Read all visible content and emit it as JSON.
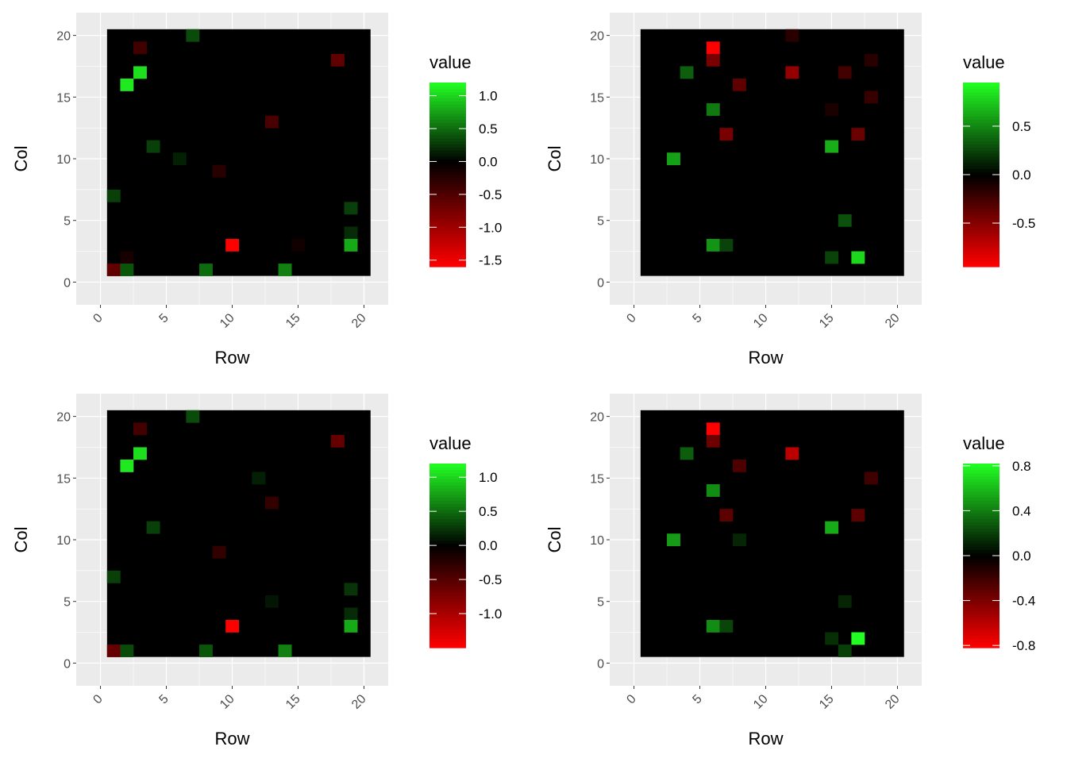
{
  "colors": {
    "low": "#ff0000",
    "mid": "#000000",
    "high": "#22ff22"
  },
  "chart_data": [
    {
      "type": "heatmap",
      "xlabel": "Row",
      "ylabel": "Col",
      "xlim": [
        0,
        20
      ],
      "ylim": [
        0,
        20
      ],
      "x_ticks": [
        "0",
        "5",
        "10",
        "15",
        "20"
      ],
      "y_ticks": [
        "0",
        "5",
        "10",
        "15",
        "20"
      ],
      "legend_title": "value",
      "legend_position": "right",
      "scale_min": -1.6,
      "scale_max": 1.2,
      "legend_ticks": [
        {
          "value": 1.0,
          "label": "1.0"
        },
        {
          "value": 0.5,
          "label": "0.5"
        },
        {
          "value": 0.0,
          "label": "0.0"
        },
        {
          "value": -0.5,
          "label": "-0.5"
        },
        {
          "value": -1.0,
          "label": "-1.0"
        },
        {
          "value": -1.5,
          "label": "-1.5"
        }
      ],
      "cells": [
        {
          "x": 7,
          "y": 20,
          "value": 0.35
        },
        {
          "x": 3,
          "y": 19,
          "value": -0.4
        },
        {
          "x": 18,
          "y": 18,
          "value": -0.6
        },
        {
          "x": 3,
          "y": 17,
          "value": 1.05
        },
        {
          "x": 2,
          "y": 16,
          "value": 1.1
        },
        {
          "x": 13,
          "y": 13,
          "value": -0.45
        },
        {
          "x": 4,
          "y": 11,
          "value": 0.3
        },
        {
          "x": 6,
          "y": 10,
          "value": 0.15
        },
        {
          "x": 9,
          "y": 9,
          "value": -0.25
        },
        {
          "x": 1,
          "y": 7,
          "value": 0.3
        },
        {
          "x": 19,
          "y": 6,
          "value": 0.3
        },
        {
          "x": 19,
          "y": 4,
          "value": 0.2
        },
        {
          "x": 10,
          "y": 3,
          "value": -1.6
        },
        {
          "x": 19,
          "y": 3,
          "value": 0.8
        },
        {
          "x": 15,
          "y": 3,
          "value": -0.1
        },
        {
          "x": 2,
          "y": 2,
          "value": -0.15
        },
        {
          "x": 1,
          "y": 1,
          "value": -0.6
        },
        {
          "x": 2,
          "y": 1,
          "value": 0.4
        },
        {
          "x": 8,
          "y": 1,
          "value": 0.5
        },
        {
          "x": 14,
          "y": 1,
          "value": 0.6
        }
      ]
    },
    {
      "type": "heatmap",
      "xlabel": "Row",
      "ylabel": "Col",
      "xlim": [
        0,
        20
      ],
      "ylim": [
        0,
        20
      ],
      "x_ticks": [
        "0",
        "5",
        "10",
        "15",
        "20"
      ],
      "y_ticks": [
        "0",
        "5",
        "10",
        "15",
        "20"
      ],
      "legend_title": "value",
      "legend_position": "right",
      "scale_min": -0.95,
      "scale_max": 0.95,
      "legend_ticks": [
        {
          "value": 0.5,
          "label": "0.5"
        },
        {
          "value": 0.0,
          "label": "0.0"
        },
        {
          "value": -0.5,
          "label": "-0.5"
        }
      ],
      "cells": [
        {
          "x": 12,
          "y": 20,
          "value": -0.15
        },
        {
          "x": 6,
          "y": 19,
          "value": -0.95
        },
        {
          "x": 6,
          "y": 18,
          "value": -0.45
        },
        {
          "x": 18,
          "y": 18,
          "value": -0.15
        },
        {
          "x": 4,
          "y": 17,
          "value": 0.35
        },
        {
          "x": 12,
          "y": 17,
          "value": -0.55
        },
        {
          "x": 16,
          "y": 17,
          "value": -0.25
        },
        {
          "x": 8,
          "y": 16,
          "value": -0.35
        },
        {
          "x": 18,
          "y": 15,
          "value": -0.2
        },
        {
          "x": 6,
          "y": 14,
          "value": 0.45
        },
        {
          "x": 15,
          "y": 14,
          "value": -0.1
        },
        {
          "x": 7,
          "y": 12,
          "value": -0.45
        },
        {
          "x": 17,
          "y": 12,
          "value": -0.4
        },
        {
          "x": 15,
          "y": 11,
          "value": 0.65
        },
        {
          "x": 3,
          "y": 10,
          "value": 0.6
        },
        {
          "x": 16,
          "y": 5,
          "value": 0.3
        },
        {
          "x": 6,
          "y": 3,
          "value": 0.55
        },
        {
          "x": 7,
          "y": 3,
          "value": 0.25
        },
        {
          "x": 15,
          "y": 2,
          "value": 0.25
        },
        {
          "x": 17,
          "y": 2,
          "value": 0.8
        }
      ]
    },
    {
      "type": "heatmap",
      "xlabel": "Row",
      "ylabel": "Col",
      "xlim": [
        0,
        20
      ],
      "ylim": [
        0,
        20
      ],
      "x_ticks": [
        "0",
        "5",
        "10",
        "15",
        "20"
      ],
      "y_ticks": [
        "0",
        "5",
        "10",
        "15",
        "20"
      ],
      "legend_title": "value",
      "legend_position": "right",
      "scale_min": -1.5,
      "scale_max": 1.2,
      "legend_ticks": [
        {
          "value": 1.0,
          "label": "1.0"
        },
        {
          "value": 0.5,
          "label": "0.5"
        },
        {
          "value": 0.0,
          "label": "0.0"
        },
        {
          "value": -0.5,
          "label": "-0.5"
        },
        {
          "value": -1.0,
          "label": "-1.0"
        }
      ],
      "cells": [
        {
          "x": 7,
          "y": 20,
          "value": 0.35
        },
        {
          "x": 3,
          "y": 19,
          "value": -0.4
        },
        {
          "x": 18,
          "y": 18,
          "value": -0.6
        },
        {
          "x": 3,
          "y": 17,
          "value": 1.05
        },
        {
          "x": 2,
          "y": 16,
          "value": 1.1
        },
        {
          "x": 12,
          "y": 15,
          "value": 0.15
        },
        {
          "x": 13,
          "y": 13,
          "value": -0.3
        },
        {
          "x": 4,
          "y": 11,
          "value": 0.3
        },
        {
          "x": 9,
          "y": 9,
          "value": -0.3
        },
        {
          "x": 1,
          "y": 7,
          "value": 0.3
        },
        {
          "x": 19,
          "y": 6,
          "value": 0.25
        },
        {
          "x": 13,
          "y": 5,
          "value": 0.1
        },
        {
          "x": 19,
          "y": 4,
          "value": 0.2
        },
        {
          "x": 10,
          "y": 3,
          "value": -1.5
        },
        {
          "x": 19,
          "y": 3,
          "value": 0.8
        },
        {
          "x": 1,
          "y": 1,
          "value": -0.6
        },
        {
          "x": 2,
          "y": 1,
          "value": 0.35
        },
        {
          "x": 8,
          "y": 1,
          "value": 0.4
        },
        {
          "x": 14,
          "y": 1,
          "value": 0.6
        }
      ]
    },
    {
      "type": "heatmap",
      "xlabel": "Row",
      "ylabel": "Col",
      "xlim": [
        0,
        20
      ],
      "ylim": [
        0,
        20
      ],
      "x_ticks": [
        "0",
        "5",
        "10",
        "15",
        "20"
      ],
      "y_ticks": [
        "0",
        "5",
        "10",
        "15",
        "20"
      ],
      "legend_title": "value",
      "legend_position": "right",
      "scale_min": -0.82,
      "scale_max": 0.82,
      "legend_ticks": [
        {
          "value": 0.8,
          "label": "0.8"
        },
        {
          "value": 0.4,
          "label": "0.4"
        },
        {
          "value": 0.0,
          "label": "0.0"
        },
        {
          "value": -0.4,
          "label": "-0.4"
        },
        {
          "value": -0.8,
          "label": "-0.8"
        }
      ],
      "cells": [
        {
          "x": 6,
          "y": 19,
          "value": -0.82
        },
        {
          "x": 6,
          "y": 18,
          "value": -0.35
        },
        {
          "x": 4,
          "y": 17,
          "value": 0.3
        },
        {
          "x": 12,
          "y": 17,
          "value": -0.6
        },
        {
          "x": 8,
          "y": 16,
          "value": -0.25
        },
        {
          "x": 18,
          "y": 15,
          "value": -0.2
        },
        {
          "x": 6,
          "y": 14,
          "value": 0.45
        },
        {
          "x": 7,
          "y": 12,
          "value": -0.3
        },
        {
          "x": 17,
          "y": 12,
          "value": -0.3
        },
        {
          "x": 15,
          "y": 11,
          "value": 0.55
        },
        {
          "x": 3,
          "y": 10,
          "value": 0.5
        },
        {
          "x": 8,
          "y": 10,
          "value": 0.12
        },
        {
          "x": 16,
          "y": 5,
          "value": 0.12
        },
        {
          "x": 6,
          "y": 3,
          "value": 0.45
        },
        {
          "x": 7,
          "y": 3,
          "value": 0.22
        },
        {
          "x": 15,
          "y": 2,
          "value": 0.15
        },
        {
          "x": 17,
          "y": 2,
          "value": 0.82
        },
        {
          "x": 16,
          "y": 1,
          "value": 0.2
        }
      ]
    }
  ]
}
